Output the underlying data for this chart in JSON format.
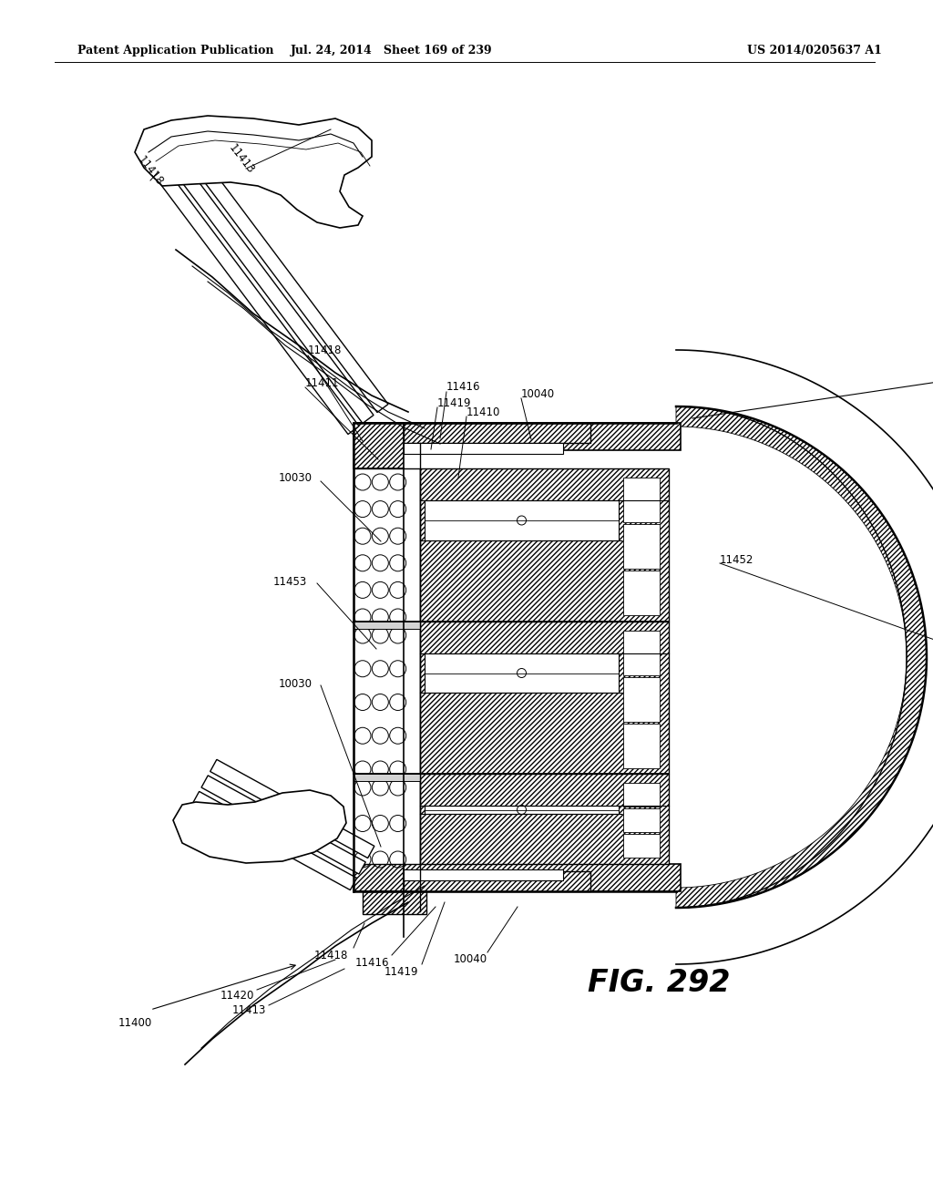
{
  "header_left": "Patent Application Publication",
  "header_mid": "Jul. 24, 2014   Sheet 169 of 239",
  "header_right": "US 2014/0205637 A1",
  "fig_label": "FIG. 292",
  "bg_color": "#ffffff"
}
